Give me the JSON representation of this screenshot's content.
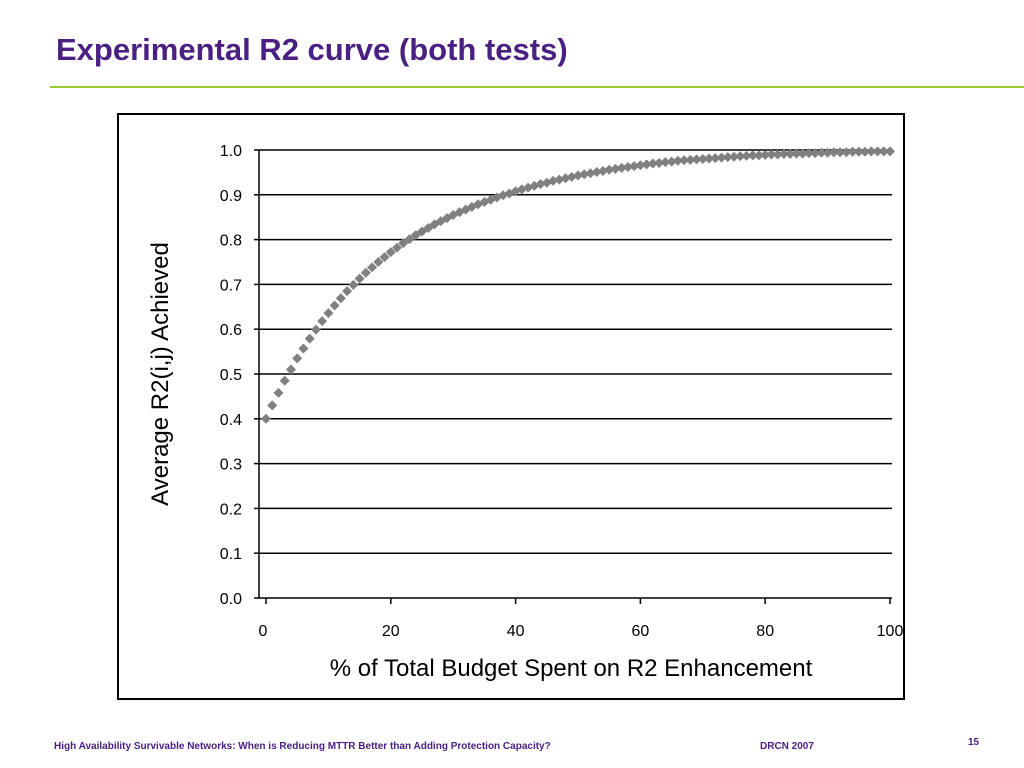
{
  "slide": {
    "title": "Experimental R2 curve (both tests)",
    "footer_text": "High Availability Survivable Networks: When is Reducing MTTR Better than Adding Protection Capacity?",
    "footer_event": "DRCN 2007",
    "page_number": "15"
  },
  "colors": {
    "title": "#4b2083",
    "rule": "#99cc33",
    "marker": "#808080",
    "gridline": "#000000"
  },
  "chart_data": {
    "type": "scatter",
    "title": "",
    "xlabel": "% of Total Budget Spent on R2 Enhancement",
    "ylabel": "Average R2(i,j) Achieved",
    "xlim": [
      0,
      100
    ],
    "ylim": [
      0.0,
      1.0
    ],
    "x_ticks": [
      0,
      20,
      40,
      60,
      80,
      100
    ],
    "y_ticks": [
      0.0,
      0.1,
      0.2,
      0.3,
      0.4,
      0.5,
      0.6,
      0.7,
      0.8,
      0.9,
      1.0
    ],
    "x_tick_labels": [
      "0",
      "20",
      "40",
      "60",
      "80",
      "100"
    ],
    "y_tick_labels": [
      "0.0",
      "0.1",
      "0.2",
      "0.3",
      "0.4",
      "0.5",
      "0.6",
      "0.7",
      "0.8",
      "0.9",
      "1.0"
    ],
    "grid": "horizontal",
    "legend": "none",
    "marker": "diamond",
    "series": [
      {
        "x": [
          0,
          1,
          2,
          3,
          4,
          5,
          6,
          7,
          8,
          9,
          10,
          11,
          12,
          13,
          14,
          15,
          16,
          17,
          18,
          19,
          20,
          21,
          22,
          23,
          24,
          25,
          26,
          27,
          28,
          29,
          30,
          31,
          32,
          33,
          34,
          35,
          36,
          37,
          38,
          39,
          40,
          41,
          42,
          43,
          44,
          45,
          46,
          47,
          48,
          49,
          50,
          51,
          52,
          53,
          54,
          55,
          56,
          57,
          58,
          59,
          60,
          61,
          62,
          63,
          64,
          65,
          66,
          67,
          68,
          69,
          70,
          71,
          72,
          73,
          74,
          75,
          76,
          77,
          78,
          79,
          80,
          81,
          82,
          83,
          84,
          85,
          86,
          87,
          88,
          89,
          90,
          91,
          92,
          93,
          94,
          95,
          96,
          97,
          98,
          99,
          100
        ],
        "y": [
          0.4,
          0.43,
          0.458,
          0.485,
          0.51,
          0.535,
          0.557,
          0.579,
          0.599,
          0.618,
          0.636,
          0.653,
          0.669,
          0.685,
          0.699,
          0.713,
          0.726,
          0.738,
          0.75,
          0.761,
          0.772,
          0.782,
          0.792,
          0.801,
          0.81,
          0.818,
          0.826,
          0.834,
          0.841,
          0.848,
          0.855,
          0.861,
          0.867,
          0.873,
          0.879,
          0.884,
          0.889,
          0.894,
          0.899,
          0.903,
          0.908,
          0.912,
          0.916,
          0.92,
          0.924,
          0.927,
          0.931,
          0.934,
          0.937,
          0.94,
          0.943,
          0.946,
          0.948,
          0.951,
          0.953,
          0.956,
          0.958,
          0.96,
          0.962,
          0.964,
          0.966,
          0.968,
          0.97,
          0.971,
          0.973,
          0.974,
          0.976,
          0.977,
          0.978,
          0.979,
          0.98,
          0.981,
          0.982,
          0.983,
          0.984,
          0.985,
          0.986,
          0.987,
          0.988,
          0.988,
          0.989,
          0.99,
          0.99,
          0.991,
          0.991,
          0.992,
          0.992,
          0.993,
          0.993,
          0.994,
          0.994,
          0.995,
          0.995,
          0.995,
          0.996,
          0.996,
          0.996,
          0.997,
          0.997,
          0.997,
          0.997
        ]
      }
    ]
  }
}
